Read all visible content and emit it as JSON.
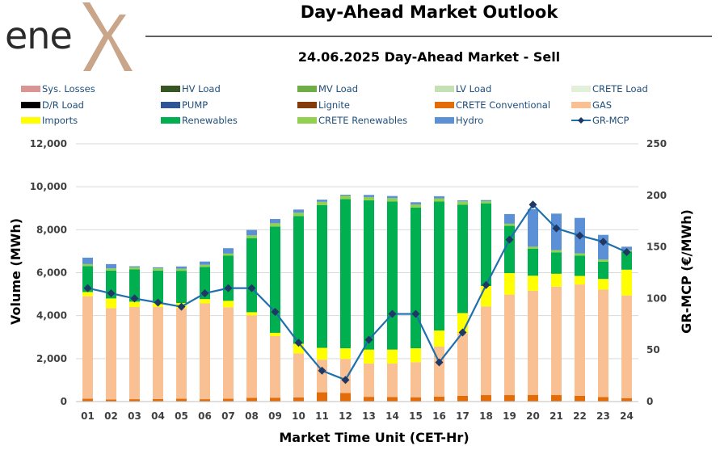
{
  "header": {
    "logo_text": "ene",
    "title": "Day-Ahead Market Outlook",
    "subtitle": "24.06.2025  Day-Ahead Market - Sell"
  },
  "chart_data": {
    "type": "bar",
    "stacked": true,
    "xlabel": "Market Time Unit (CET-Hr)",
    "ylabel_left": "Volume (MWh)",
    "ylabel_right": "GR-MCP (€/MWh)",
    "ylim_left": [
      0,
      12000
    ],
    "ylim_right": [
      0,
      250
    ],
    "yticks_left": [
      "0",
      "2,000",
      "4,000",
      "6,000",
      "8,000",
      "10,000",
      "12,000"
    ],
    "yticks_right": [
      "0",
      "50",
      "100",
      "150",
      "200",
      "250"
    ],
    "grid": true,
    "legend_position": "top",
    "categories": [
      "01",
      "02",
      "03",
      "04",
      "05",
      "06",
      "07",
      "08",
      "09",
      "10",
      "11",
      "12",
      "13",
      "14",
      "15",
      "16",
      "17",
      "18",
      "19",
      "20",
      "21",
      "22",
      "23",
      "24"
    ],
    "series": [
      {
        "name": "Sys. Losses",
        "color": "#d99594",
        "kind": "bar",
        "values": [
          0,
          0,
          0,
          0,
          0,
          0,
          0,
          0,
          0,
          0,
          0,
          0,
          0,
          0,
          0,
          0,
          0,
          0,
          0,
          0,
          0,
          0,
          0,
          0
        ]
      },
      {
        "name": "HV Load",
        "color": "#375623",
        "kind": "bar",
        "values": [
          0,
          0,
          0,
          0,
          0,
          0,
          0,
          0,
          0,
          0,
          0,
          0,
          0,
          0,
          0,
          0,
          0,
          0,
          0,
          0,
          0,
          0,
          0,
          0
        ]
      },
      {
        "name": "MV Load",
        "color": "#70ad47",
        "kind": "bar",
        "values": [
          0,
          0,
          0,
          0,
          0,
          0,
          0,
          0,
          0,
          0,
          0,
          0,
          0,
          0,
          0,
          0,
          0,
          0,
          0,
          0,
          0,
          0,
          0,
          0
        ]
      },
      {
        "name": "LV Load",
        "color": "#c5e0b4",
        "kind": "bar",
        "values": [
          0,
          0,
          0,
          0,
          0,
          0,
          0,
          0,
          0,
          0,
          0,
          0,
          0,
          0,
          0,
          0,
          0,
          0,
          0,
          0,
          0,
          0,
          0,
          0
        ]
      },
      {
        "name": "CRETE Load",
        "color": "#e2efd9",
        "kind": "bar",
        "values": [
          0,
          0,
          0,
          0,
          0,
          0,
          0,
          0,
          0,
          0,
          0,
          0,
          0,
          0,
          0,
          0,
          0,
          0,
          0,
          0,
          0,
          0,
          0,
          0
        ]
      },
      {
        "name": "D/R Load",
        "color": "#000000",
        "kind": "bar",
        "values": [
          0,
          0,
          0,
          0,
          0,
          0,
          0,
          0,
          0,
          0,
          0,
          0,
          0,
          0,
          0,
          0,
          0,
          0,
          0,
          0,
          0,
          0,
          0,
          0
        ]
      },
      {
        "name": "PUMP",
        "color": "#2f5597",
        "kind": "bar",
        "values": [
          0,
          0,
          0,
          0,
          0,
          0,
          0,
          0,
          0,
          0,
          0,
          0,
          0,
          0,
          0,
          0,
          0,
          0,
          0,
          0,
          0,
          0,
          0,
          0
        ]
      },
      {
        "name": "Lignite",
        "color": "#843c0c",
        "kind": "bar",
        "values": [
          0,
          0,
          0,
          0,
          0,
          0,
          0,
          0,
          0,
          0,
          0,
          0,
          0,
          0,
          0,
          0,
          0,
          0,
          0,
          0,
          0,
          0,
          0,
          0
        ]
      },
      {
        "name": "CRETE Conventional",
        "color": "#e36c09",
        "kind": "bar",
        "values": [
          130,
          100,
          110,
          120,
          130,
          110,
          130,
          170,
          180,
          190,
          430,
          400,
          220,
          210,
          200,
          230,
          270,
          300,
          300,
          310,
          300,
          270,
          210,
          160
        ]
      },
      {
        "name": "GAS",
        "color": "#f8c093",
        "kind": "bar",
        "values": [
          4770,
          4250,
          4290,
          4280,
          4210,
          4460,
          4260,
          3840,
          2870,
          2050,
          1520,
          1580,
          1550,
          1560,
          1630,
          2330,
          2900,
          4130,
          4680,
          4850,
          5050,
          5180,
          5000,
          4780
        ]
      },
      {
        "name": "Imports",
        "color": "#ffff00",
        "kind": "bar",
        "values": [
          200,
          450,
          250,
          200,
          250,
          200,
          300,
          150,
          150,
          450,
          550,
          500,
          650,
          650,
          650,
          750,
          950,
          950,
          1000,
          700,
          600,
          400,
          500,
          1200
        ]
      },
      {
        "name": "Renewables",
        "color": "#00b050",
        "kind": "bar",
        "values": [
          1200,
          1300,
          1500,
          1500,
          1500,
          1500,
          2100,
          3450,
          4950,
          5950,
          6650,
          6950,
          6950,
          6900,
          6550,
          6000,
          5050,
          3850,
          2200,
          1250,
          1000,
          950,
          800,
          850
        ]
      },
      {
        "name": "CRETE Renewables",
        "color": "#92d050",
        "kind": "bar",
        "values": [
          100,
          100,
          100,
          100,
          100,
          100,
          100,
          130,
          150,
          150,
          150,
          150,
          150,
          150,
          150,
          150,
          150,
          100,
          100,
          100,
          100,
          100,
          100,
          60
        ]
      },
      {
        "name": "Hydro",
        "color": "#5b8fd6",
        "kind": "bar",
        "values": [
          300,
          200,
          50,
          50,
          100,
          150,
          250,
          250,
          200,
          150,
          100,
          50,
          100,
          100,
          100,
          100,
          50,
          50,
          450,
          1750,
          1700,
          1650,
          1150,
          160
        ]
      },
      {
        "name": "GR-MCP",
        "color": "#1f6fad",
        "kind": "line",
        "marker_color": "#1f3864",
        "axis": "right",
        "values": [
          110,
          105,
          100,
          96,
          92,
          105,
          110,
          110,
          87,
          57,
          30,
          21,
          60,
          85,
          85,
          38,
          67,
          113,
          157,
          191,
          168,
          161,
          155,
          145
        ]
      }
    ]
  }
}
